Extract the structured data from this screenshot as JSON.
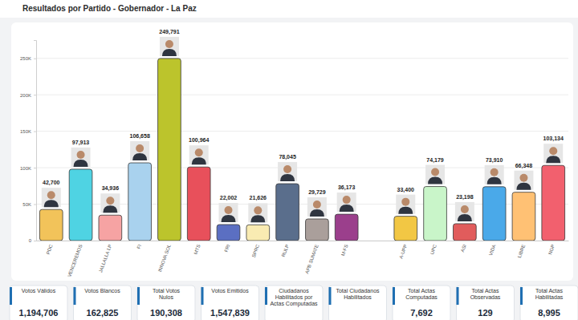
{
  "header": {
    "title": "Resultados por Partido - Gobernador - La Paz"
  },
  "chart_data": {
    "type": "bar",
    "categories": [
      "PDC",
      "VENCEREMOS",
      "JALLALLA LP",
      "FI",
      "INNOVA SOL",
      "MTS",
      "FRI",
      "SPRC",
      "RULP",
      "APB SUMATE",
      "M-FS",
      null,
      "A-UPP",
      "UPC",
      "ASI",
      "VIDA",
      "LIBRE",
      "NGP"
    ],
    "values": [
      42700,
      97913,
      34936,
      106658,
      249791,
      100964,
      22002,
      21626,
      78045,
      29729,
      36173,
      null,
      33400,
      74179,
      23198,
      73910,
      66348,
      103134
    ],
    "value_labels": [
      "42,700",
      "97,913",
      "34,936",
      "106,658",
      "249,791",
      "100,964",
      "22,002",
      "21,626",
      "78,045",
      "29,729",
      "36,173",
      null,
      "33,400",
      "74,179",
      "23,198",
      "73,910",
      "66,348",
      "103,134"
    ],
    "colors": [
      "#f2c35a",
      "#4fd3e3",
      "#f6a3a3",
      "#a9d2ee",
      "#bcc42c",
      "#e8505b",
      "#5b6fc2",
      "#f9ebb2",
      "#5a6e8c",
      "#aa9f9b",
      "#9b3f8c",
      "#cccccc",
      "#f2c744",
      "#c9f5c9",
      "#e15c5c",
      "#4aa9e9",
      "#ffc174",
      "#f2606e"
    ],
    "ylim": [
      0,
      275000
    ],
    "yticks": [
      0,
      {
        "value": 50000,
        "label": "50K"
      },
      {
        "value": 100000,
        "label": "100K"
      },
      {
        "value": 150000,
        "label": "150K"
      },
      {
        "value": 200000,
        "label": "200K"
      },
      {
        "value": 250000,
        "label": "250K"
      }
    ],
    "grid": true,
    "data_labels": true
  },
  "summary_cards": [
    {
      "label": "Votos Válidos",
      "value": "1,194,706"
    },
    {
      "label": "Votos Blancos",
      "value": "162,825"
    },
    {
      "label": "Total Votos Nulos",
      "value": "190,308"
    },
    {
      "label": "Votos Emitidos",
      "value": "1,547,839"
    },
    {
      "label": "Ciudadanos Habilitados por Actas Computadas"
    },
    {
      "label": "Total Ciudadanos Habilitados"
    },
    {
      "label": "Total Actas Computadas",
      "value": "7,692"
    },
    {
      "label": "Total Actas Observadas",
      "value": "129"
    },
    {
      "label": "Total Actas Habilitadas",
      "value": "8,995"
    }
  ]
}
